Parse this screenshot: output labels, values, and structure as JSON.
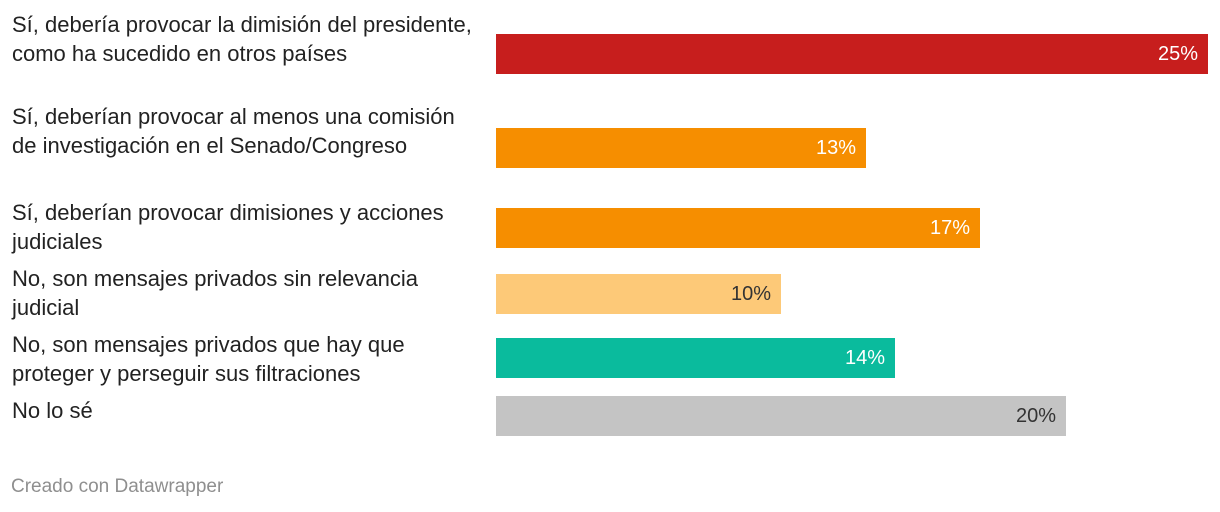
{
  "chart_data": {
    "type": "bar",
    "orientation": "horizontal",
    "title": "",
    "xlabel": "",
    "ylabel": "",
    "xlim": [
      0,
      25
    ],
    "categories": [
      "Sí, debería provocar la dimisión del presidente, como ha sucedido en otros países",
      "Sí, deberían provocar al menos una comisión de investigación en el Senado/Congreso",
      "Sí, deberían provocar dimisiones y acciones judiciales",
      "No, son mensajes privados sin relevancia judicial",
      "No, son mensajes privados que hay que proteger y perseguir sus filtraciones",
      "No lo sé"
    ],
    "values": [
      25,
      13,
      17,
      10,
      14,
      20
    ],
    "value_labels": [
      "25%",
      "13%",
      "17%",
      "10%",
      "14%",
      "20%"
    ],
    "colors": [
      "#c71e1d",
      "#f68e00",
      "#f68e00",
      "#fdc978",
      "#0abb9d",
      "#c4c4c4"
    ],
    "label_colors": [
      "#ffffff",
      "#ffffff",
      "#ffffff",
      "#333333",
      "#ffffff",
      "#333333"
    ]
  },
  "footer": {
    "credit": "Creado con Datawrapper"
  }
}
